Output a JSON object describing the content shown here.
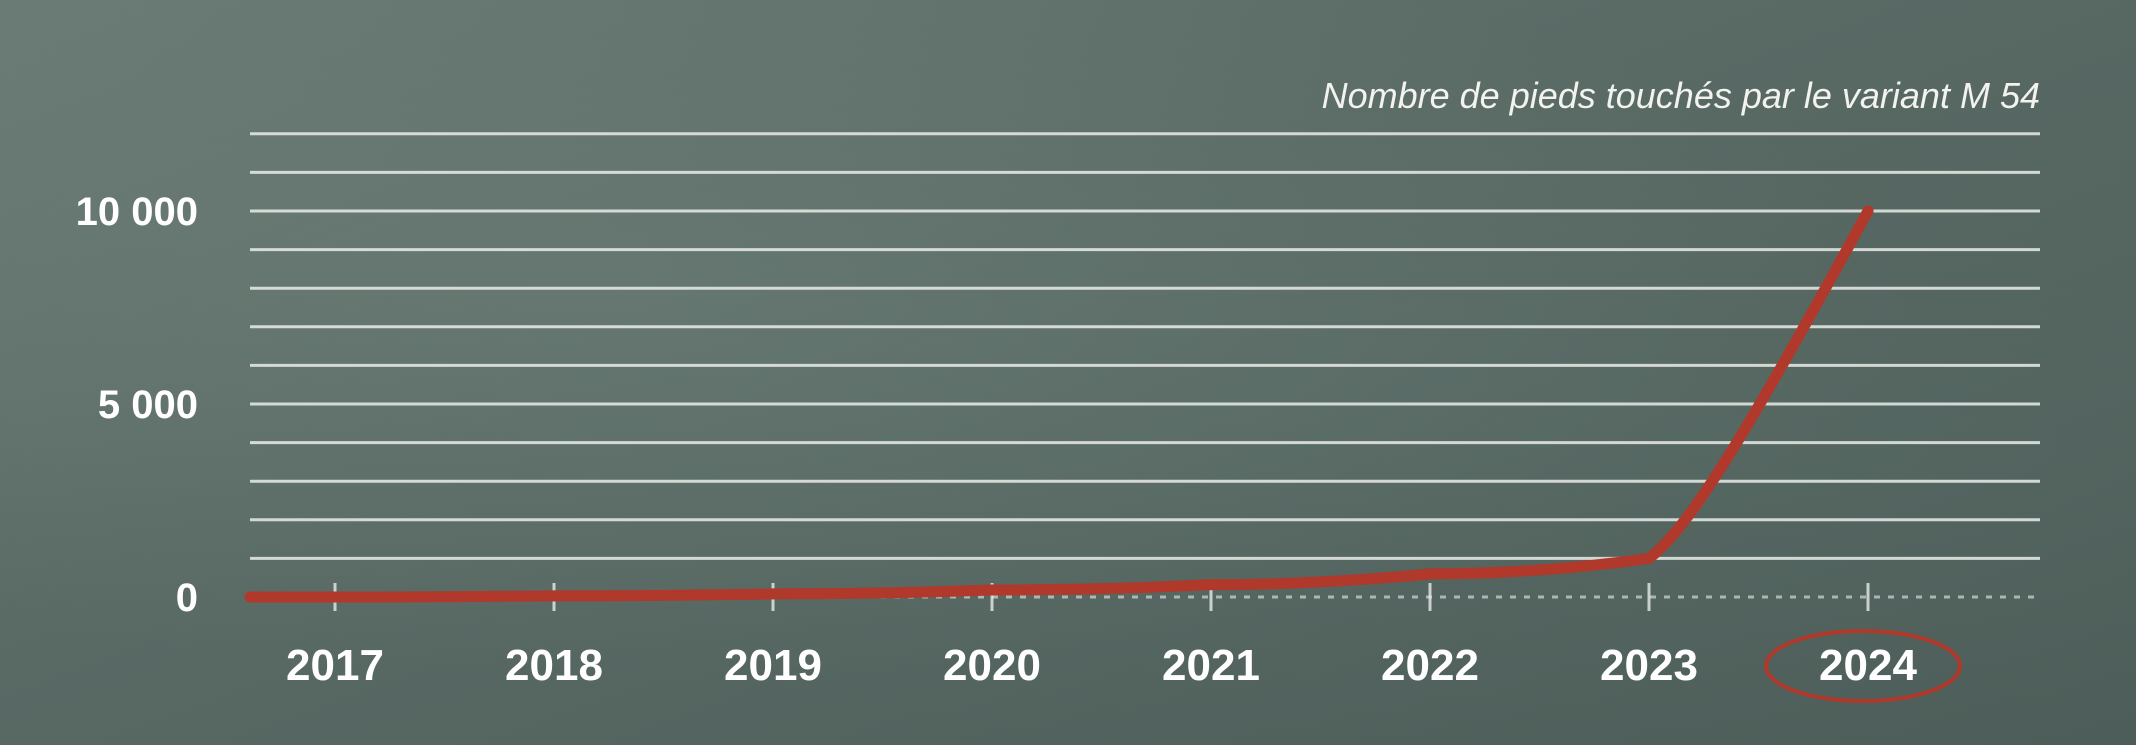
{
  "chart_data": {
    "type": "line",
    "title": "Nombre de pieds touchés par le variant M 54",
    "xlabel": "",
    "ylabel": "",
    "x": [
      "2017",
      "2018",
      "2019",
      "2020",
      "2021",
      "2022",
      "2023",
      "2024"
    ],
    "y_ticks": [
      {
        "value": 0,
        "label": "0"
      },
      {
        "value": 5000,
        "label": "5 000"
      },
      {
        "value": 10000,
        "label": "10 000"
      }
    ],
    "ylim": [
      0,
      12000
    ],
    "grid": true,
    "highlighted_category": "2024",
    "series": [
      {
        "values": [
          0,
          30,
          80,
          180,
          320,
          600,
          1000,
          10000
        ],
        "color": "#b0392b"
      }
    ]
  }
}
